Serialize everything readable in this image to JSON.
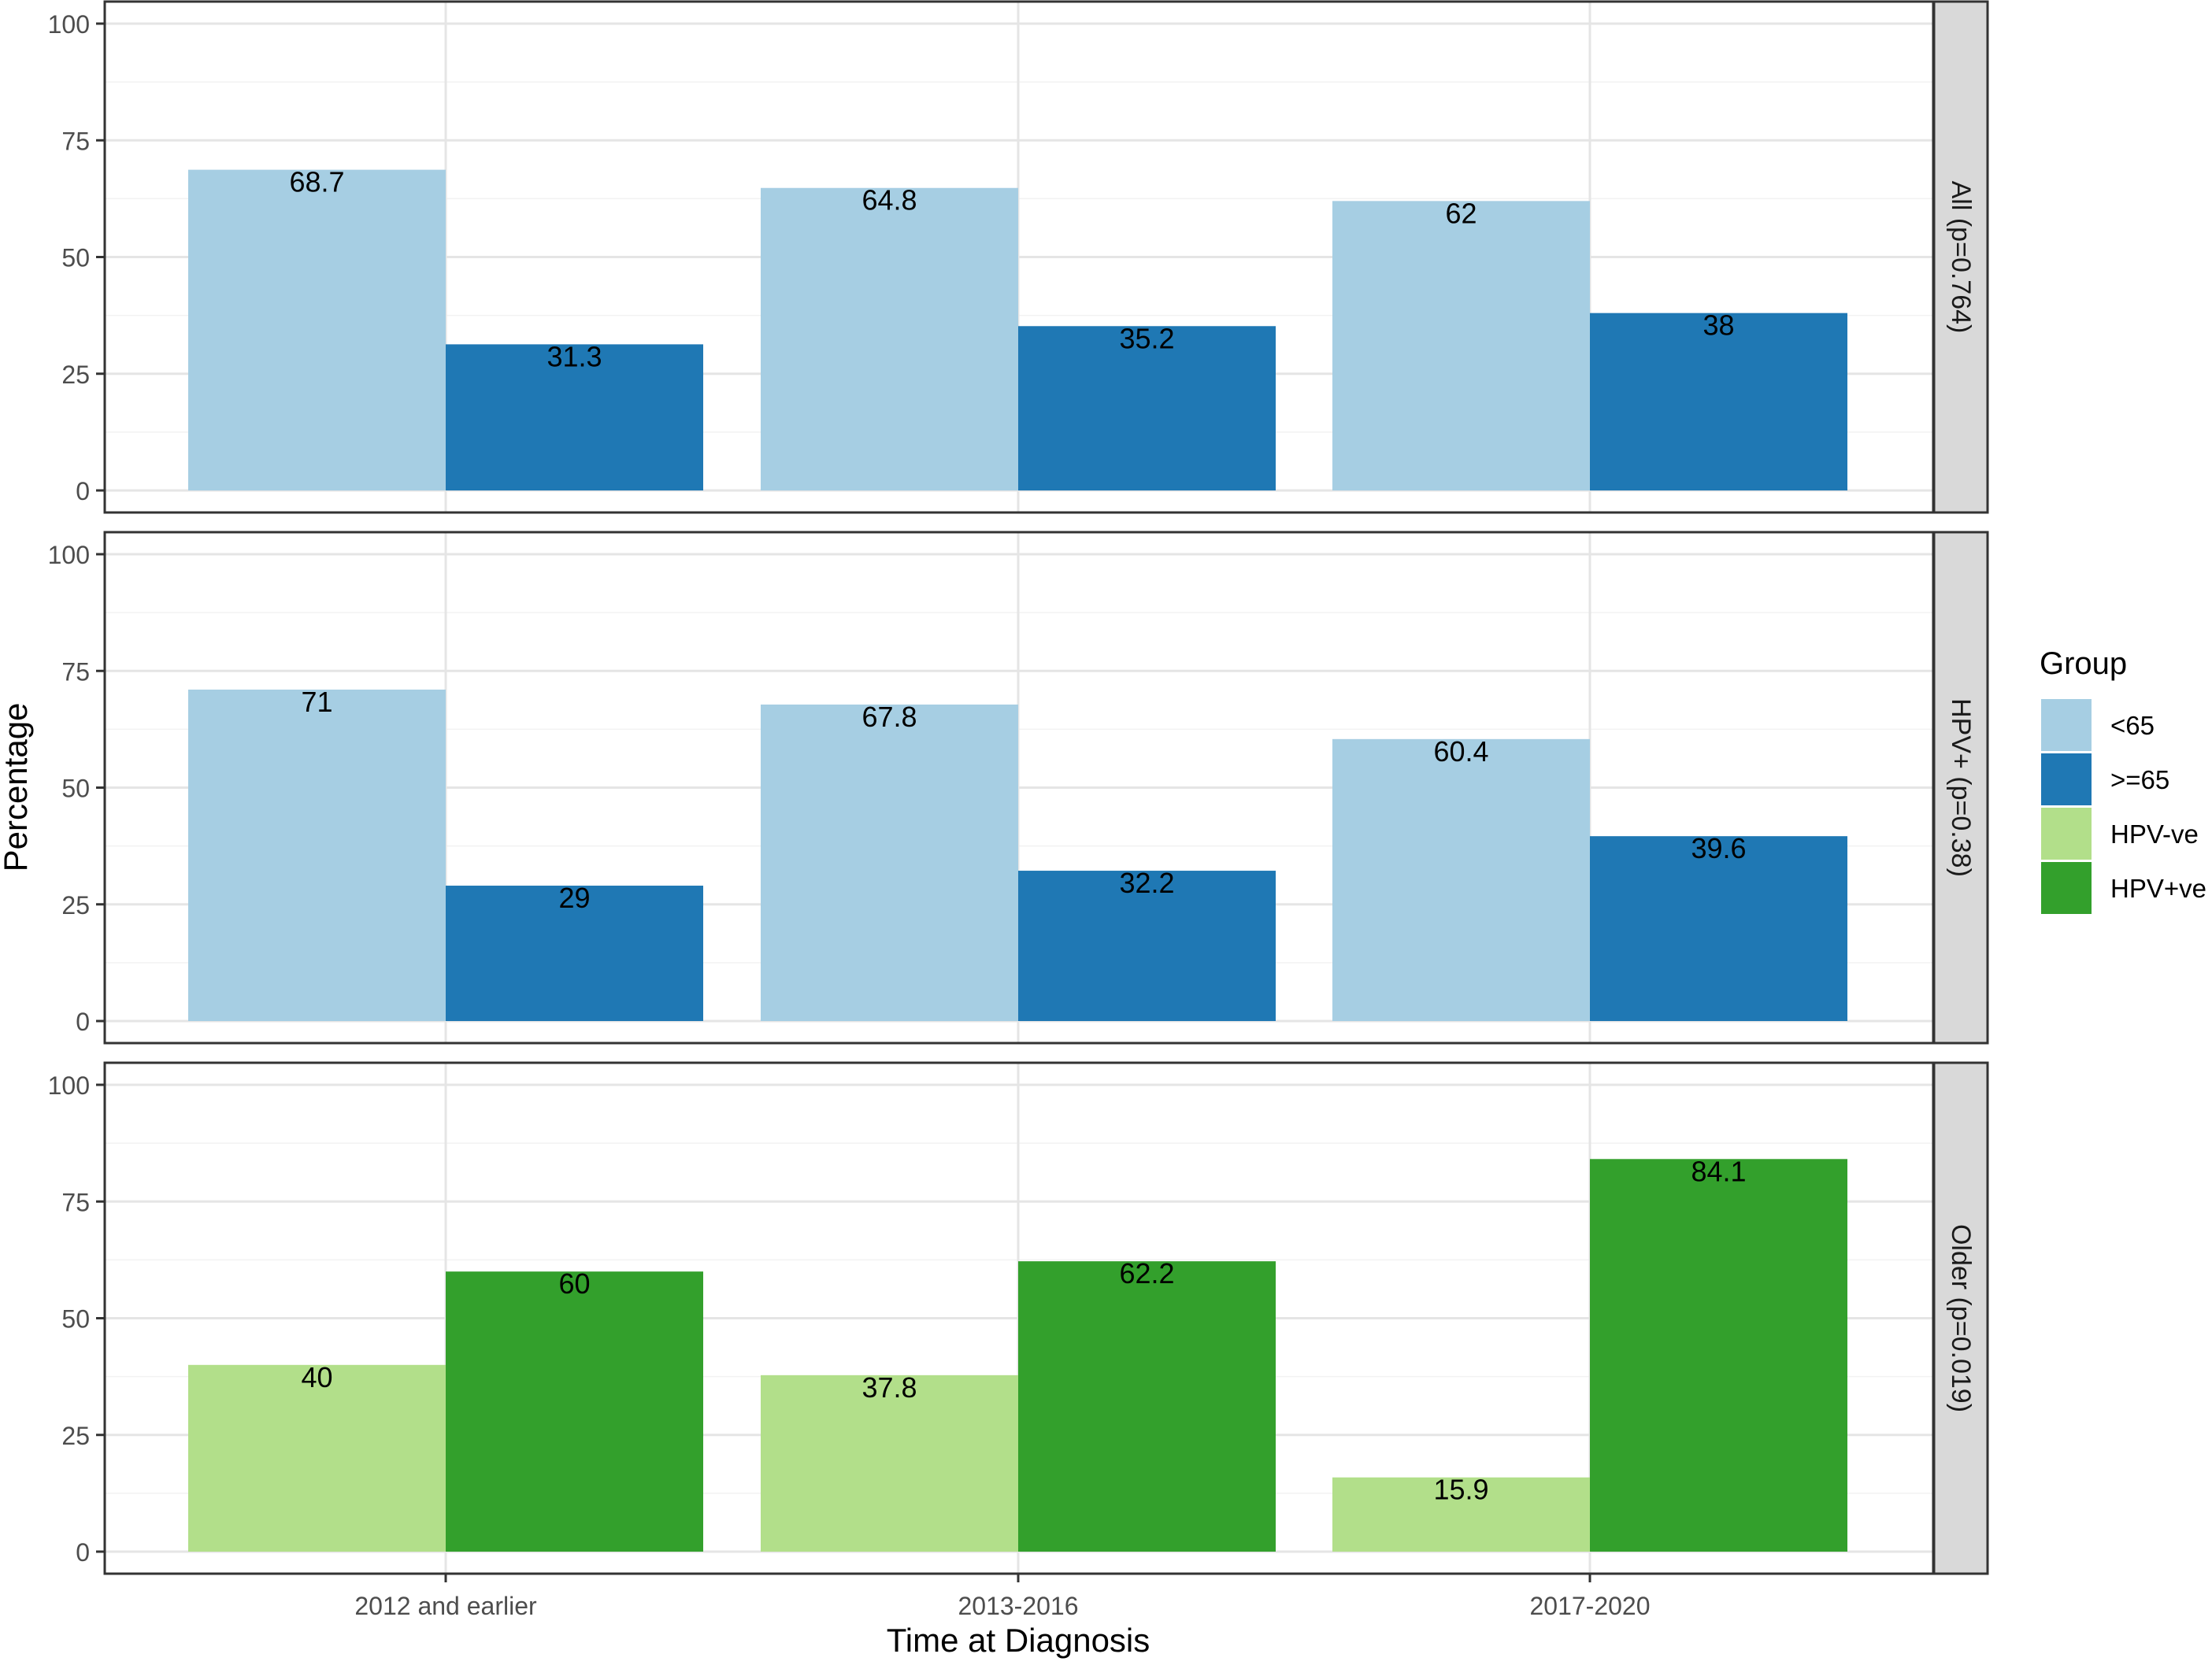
{
  "chart_data": {
    "type": "bar",
    "layout": "faceted-rows",
    "xlabel": "Time at Diagnosis",
    "ylabel": "Percentage",
    "categories": [
      "2012 and earlier",
      "2013-2016",
      "2017-2020"
    ],
    "ylim": [
      0,
      100
    ],
    "yticks": [
      0,
      25,
      50,
      75,
      100
    ],
    "grid": true,
    "legend": {
      "title": "Group",
      "position": "right",
      "items": [
        {
          "name": "<65",
          "color": "#a6cee3"
        },
        {
          "name": ">=65",
          "color": "#1f78b4"
        },
        {
          "name": "HPV-ve",
          "color": "#b2df8a"
        },
        {
          "name": "HPV+ve",
          "color": "#33a02c"
        }
      ]
    },
    "panels": [
      {
        "strip": "All (p=0.764)",
        "series": [
          {
            "name": "<65",
            "color": "#a6cee3",
            "values": [
              68.7,
              64.8,
              62
            ],
            "labels": [
              "68.7",
              "64.8",
              "62"
            ]
          },
          {
            "name": ">=65",
            "color": "#1f78b4",
            "values": [
              31.3,
              35.2,
              38
            ],
            "labels": [
              "31.3",
              "35.2",
              "38"
            ]
          }
        ]
      },
      {
        "strip": "HPV+ (p=0.38)",
        "series": [
          {
            "name": "<65",
            "color": "#a6cee3",
            "values": [
              71,
              67.8,
              60.4
            ],
            "labels": [
              "71",
              "67.8",
              "60.4"
            ]
          },
          {
            "name": ">=65",
            "color": "#1f78b4",
            "values": [
              29,
              32.2,
              39.6
            ],
            "labels": [
              "29",
              "32.2",
              "39.6"
            ]
          }
        ]
      },
      {
        "strip": "Older (p=0.019)",
        "series": [
          {
            "name": "HPV-ve",
            "color": "#b2df8a",
            "values": [
              40,
              37.8,
              15.9
            ],
            "labels": [
              "40",
              "37.8",
              "15.9"
            ]
          },
          {
            "name": "HPV+ve",
            "color": "#33a02c",
            "values": [
              60,
              62.2,
              84.1
            ],
            "labels": [
              "60",
              "62.2",
              "84.1"
            ]
          }
        ]
      }
    ]
  }
}
